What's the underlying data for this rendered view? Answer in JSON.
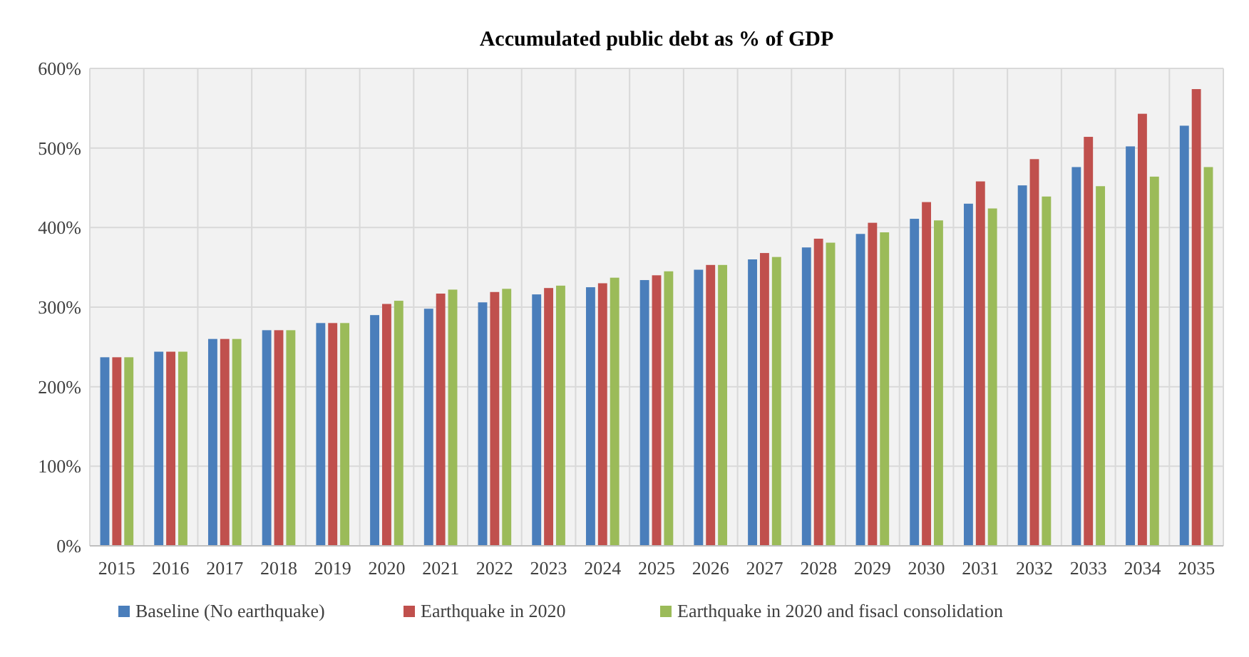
{
  "chart_data": {
    "type": "bar",
    "title": "Accumulated public debt as % of GDP",
    "categories": [
      "2015",
      "2016",
      "2017",
      "2018",
      "2019",
      "2020",
      "2021",
      "2022",
      "2023",
      "2024",
      "2025",
      "2026",
      "2027",
      "2028",
      "2029",
      "2030",
      "2031",
      "2032",
      "2033",
      "2034",
      "2035"
    ],
    "series": [
      {
        "name": "Baseline (No earthquake)",
        "color": "#4a7ebb",
        "values": [
          237,
          244,
          260,
          271,
          280,
          290,
          298,
          306,
          316,
          325,
          334,
          347,
          360,
          375,
          392,
          411,
          430,
          453,
          476,
          502,
          528
        ]
      },
      {
        "name": "Earthquake in 2020",
        "color": "#c0504d",
        "values": [
          237,
          244,
          260,
          271,
          280,
          304,
          317,
          319,
          324,
          330,
          340,
          353,
          368,
          386,
          406,
          432,
          458,
          486,
          514,
          543,
          574
        ]
      },
      {
        "name": "Earthquake in 2020 and fisacl consolidation",
        "color": "#9bbb59",
        "values": [
          237,
          244,
          260,
          271,
          280,
          308,
          322,
          323,
          327,
          337,
          345,
          353,
          363,
          381,
          394,
          409,
          424,
          439,
          452,
          464,
          476
        ]
      }
    ],
    "ylim": [
      0,
      600
    ],
    "yticks": [
      {
        "value": 0,
        "label": "0%"
      },
      {
        "value": 100,
        "label": "100%"
      },
      {
        "value": 200,
        "label": "200%"
      },
      {
        "value": 300,
        "label": "300%"
      },
      {
        "value": 400,
        "label": "400%"
      },
      {
        "value": 500,
        "label": "500%"
      },
      {
        "value": 600,
        "label": "600%"
      }
    ],
    "grid": true,
    "legend": "bottom"
  }
}
